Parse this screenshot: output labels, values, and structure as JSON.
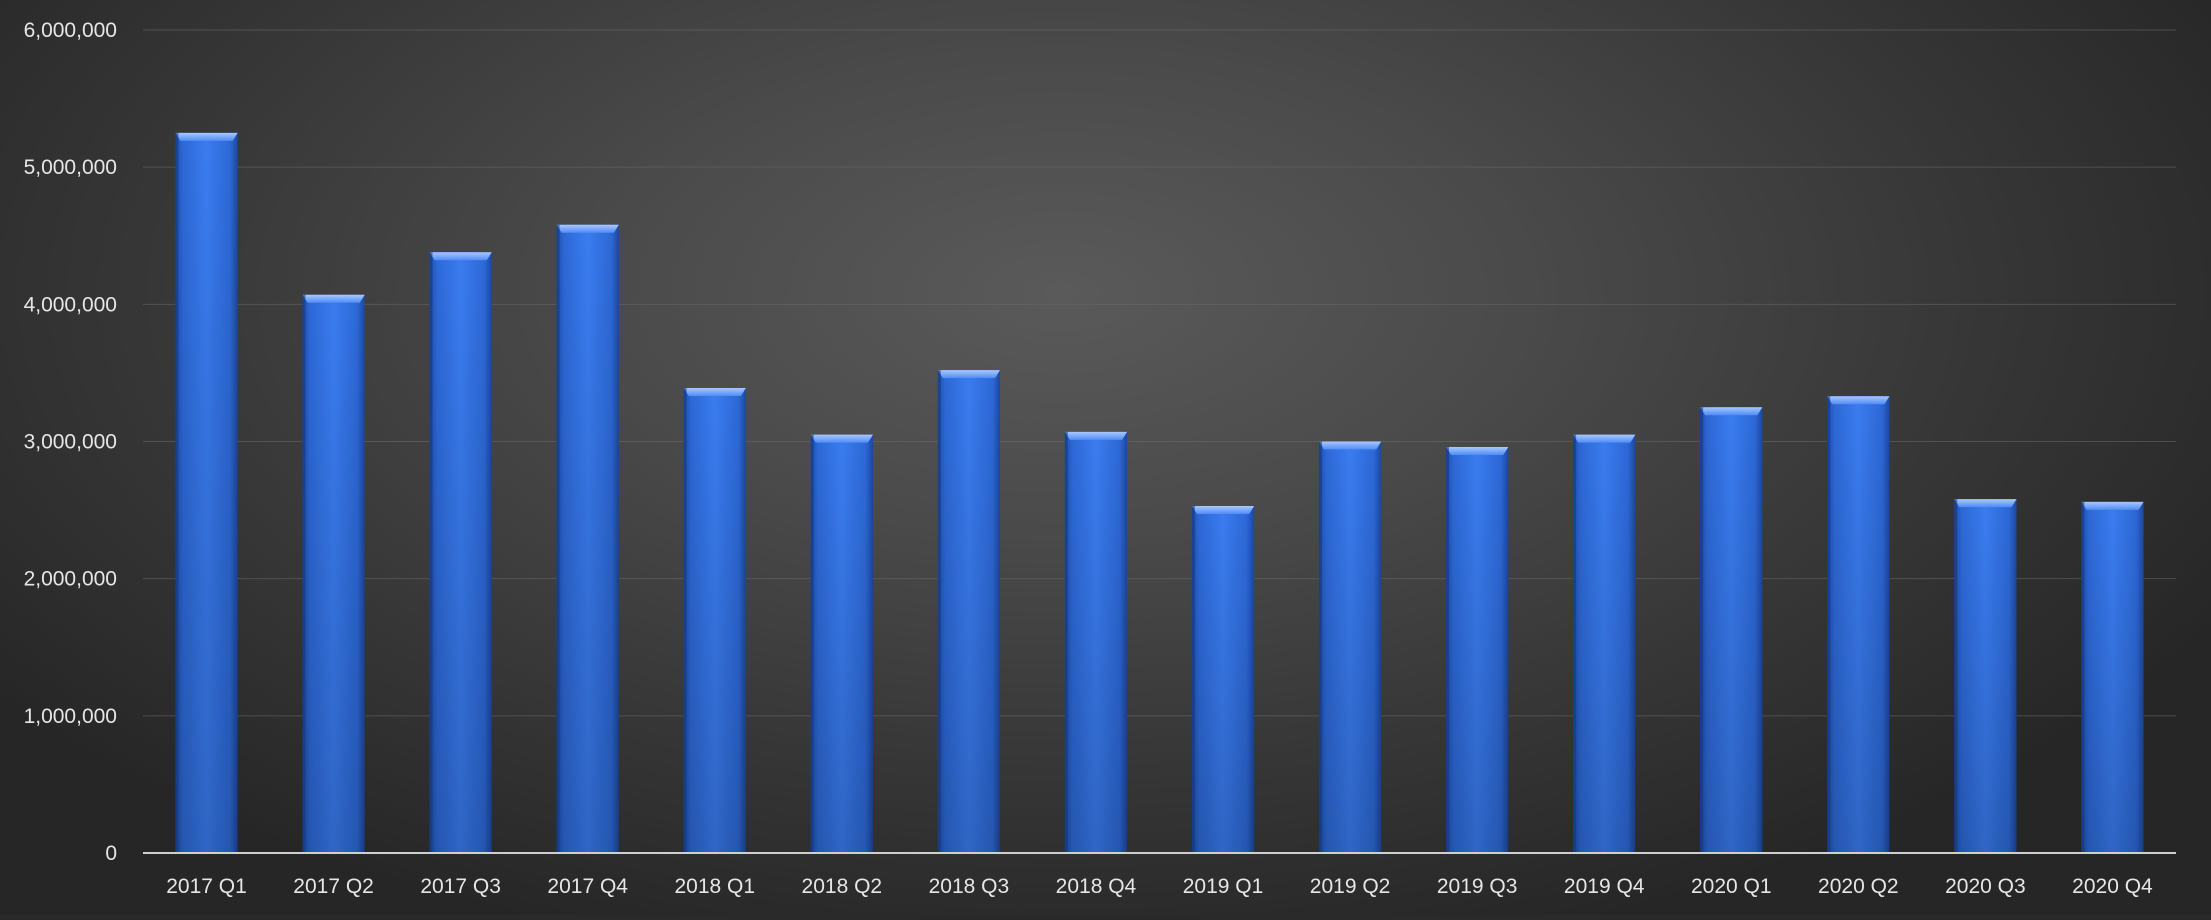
{
  "chart_data": {
    "type": "bar",
    "title": "",
    "xlabel": "",
    "ylabel": "",
    "categories": [
      "2017 Q1",
      "2017 Q2",
      "2017 Q3",
      "2017 Q4",
      "2018 Q1",
      "2018 Q2",
      "2018 Q3",
      "2018 Q4",
      "2019 Q1",
      "2019 Q2",
      "2019 Q3",
      "2019 Q4",
      "2020 Q1",
      "2020 Q2",
      "2020 Q3",
      "2020 Q4"
    ],
    "values": [
      5250000,
      4070000,
      4380000,
      4580000,
      3390000,
      3050000,
      3520000,
      3070000,
      2530000,
      3000000,
      2960000,
      3050000,
      3250000,
      3330000,
      2580000,
      2560000
    ],
    "ylim": [
      0,
      6000000
    ],
    "yticks": [
      0,
      1000000,
      2000000,
      3000000,
      4000000,
      5000000,
      6000000
    ],
    "ytick_labels": [
      "0",
      "1,000,000",
      "2,000,000",
      "3,000,000",
      "4,000,000",
      "5,000,000",
      "6,000,000"
    ],
    "grid": true,
    "legend": "none",
    "bar_color": "#2f6fe0"
  }
}
